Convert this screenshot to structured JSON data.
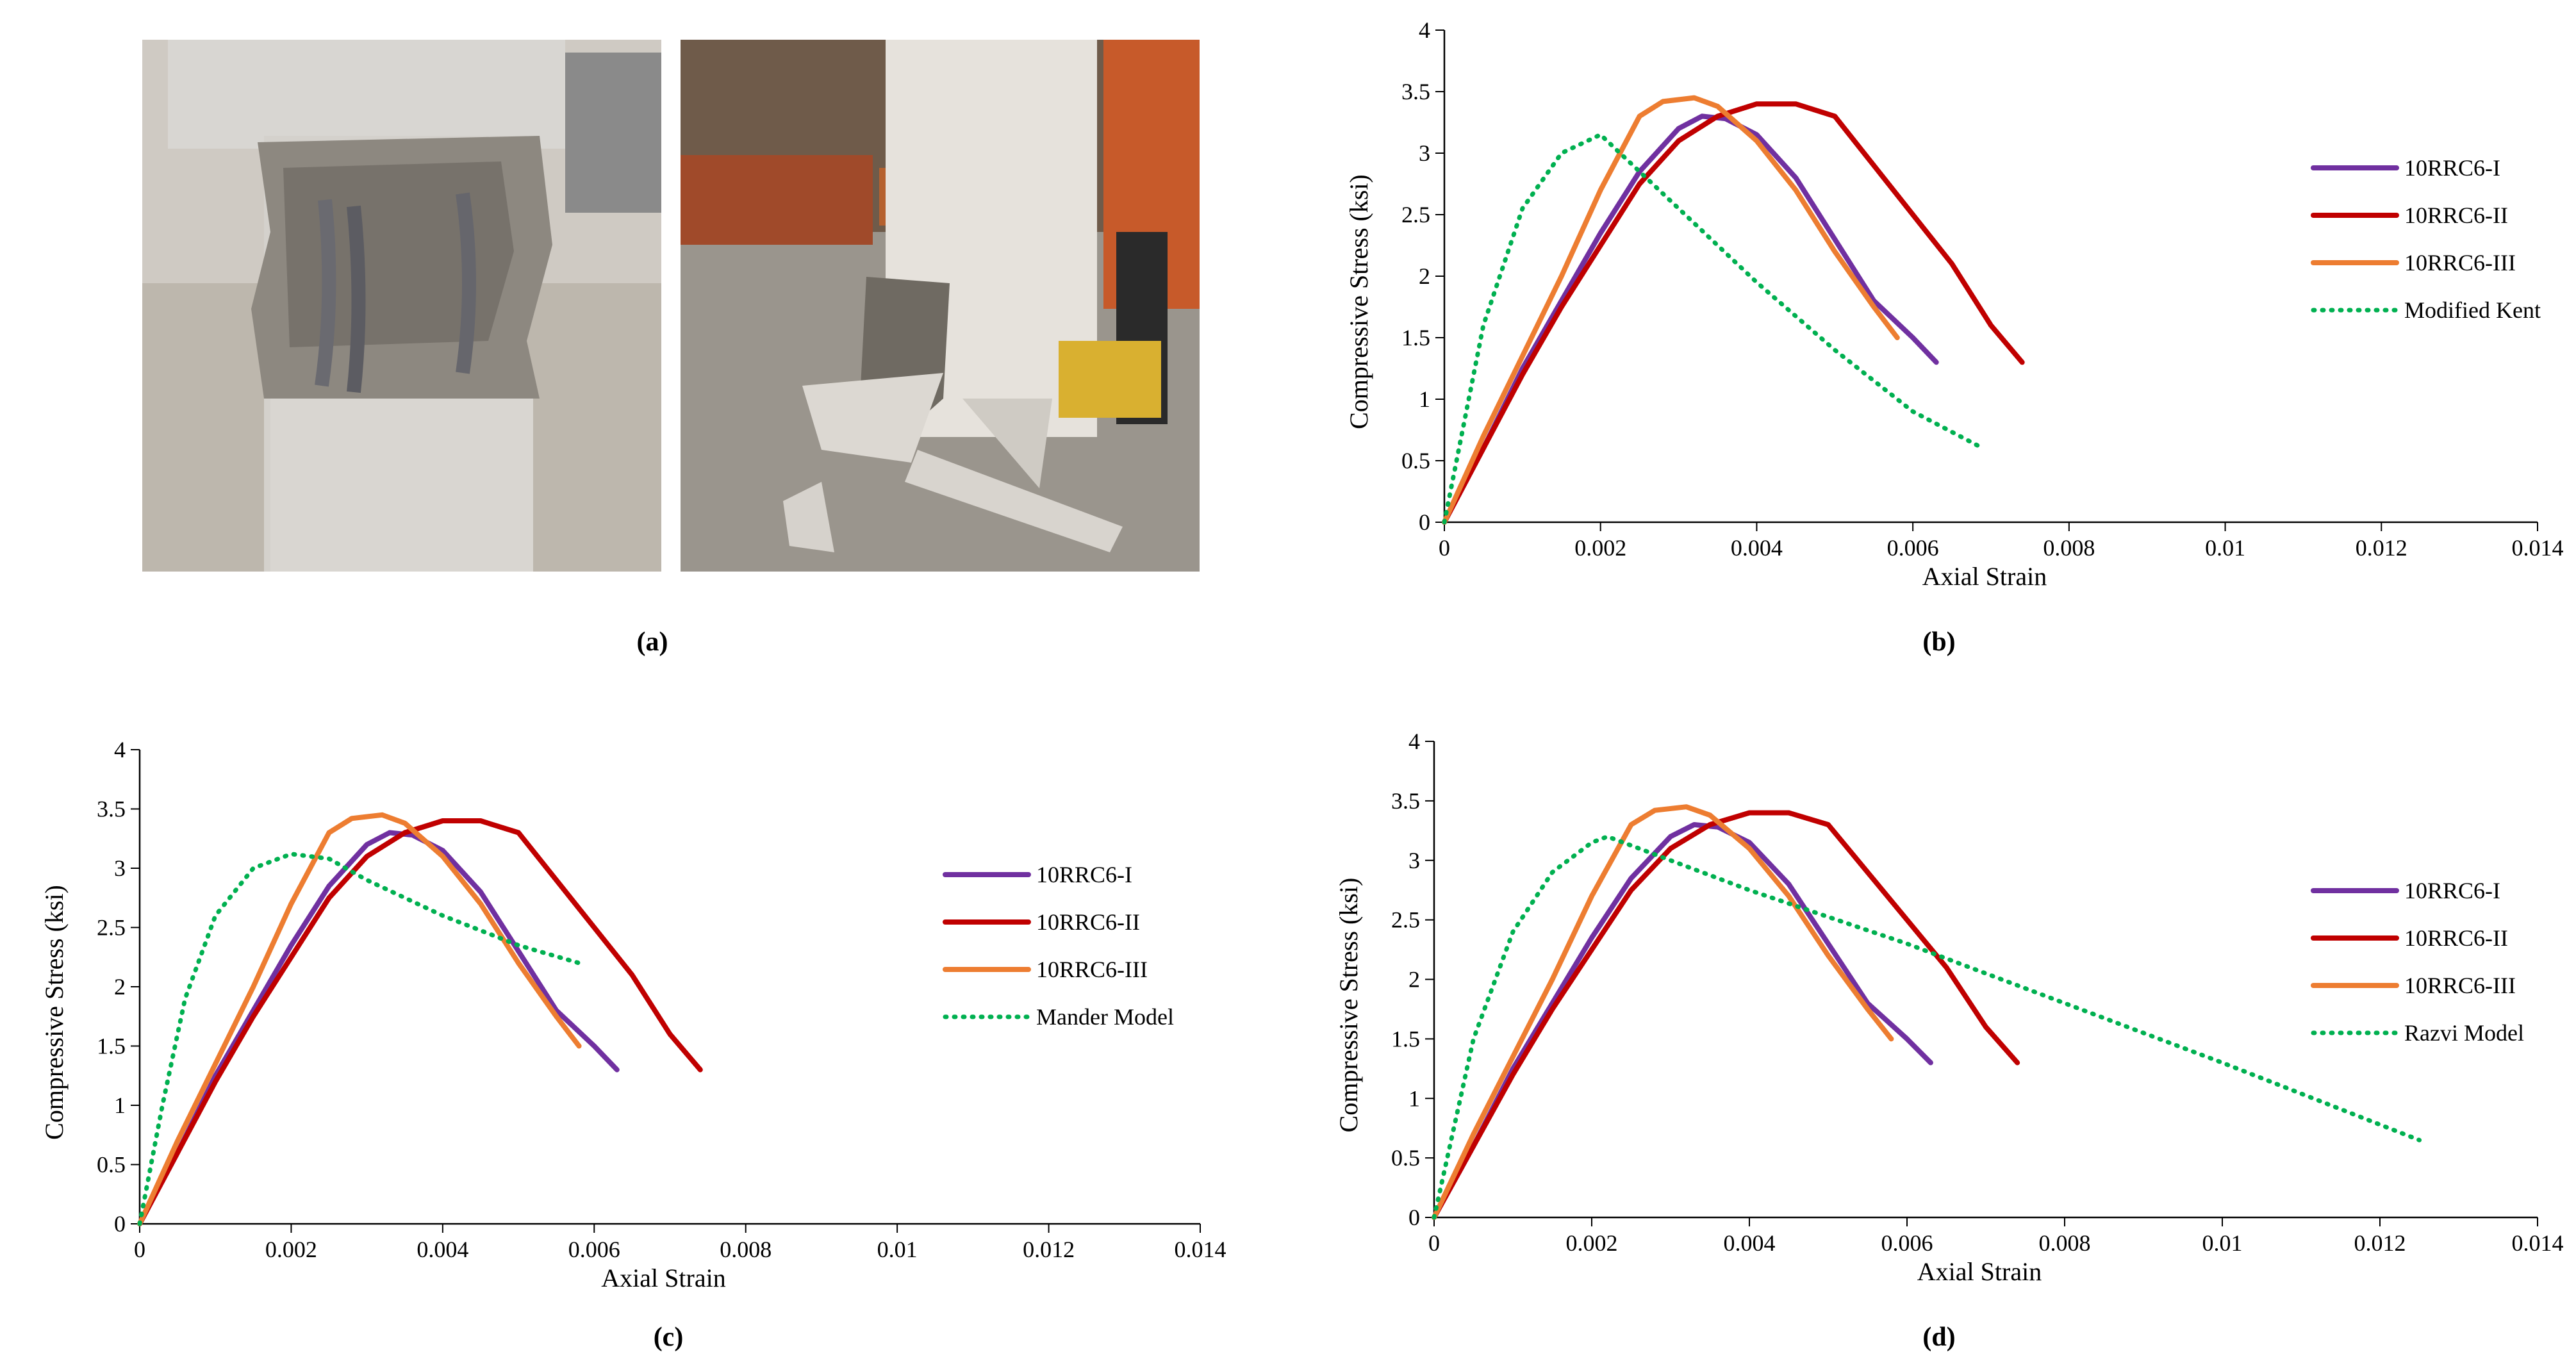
{
  "panels": {
    "a": "(a)",
    "b": "(b)",
    "c": "(c)",
    "d": "(d)"
  },
  "colors": {
    "10RRC6-I": "#7030a0",
    "10RRC6-II": "#c00000",
    "10RRC6-III": "#ed7d31",
    "model": "#00b050"
  },
  "chart_data": [
    {
      "id": "b",
      "type": "line",
      "xlabel": "Axial Strain",
      "ylabel": "Compressive Stress (ksi)",
      "xlim": [
        0,
        0.014
      ],
      "ylim": [
        0,
        4
      ],
      "xticks": [
        "0",
        "0.002",
        "0.004",
        "0.006",
        "0.008",
        "0.01",
        "0.012",
        "0.014"
      ],
      "yticks": [
        "0",
        "0.5",
        "1",
        "1.5",
        "2",
        "2.5",
        "3",
        "3.5",
        "4"
      ],
      "legend_position": "right",
      "series": [
        {
          "name": "10RRC6-I",
          "style": "solid",
          "x": [
            0,
            0.0005,
            0.001,
            0.0015,
            0.002,
            0.0025,
            0.003,
            0.0033,
            0.0036,
            0.004,
            0.0045,
            0.005,
            0.0055,
            0.006,
            0.0063
          ],
          "y": [
            0,
            0.6,
            1.25,
            1.8,
            2.35,
            2.85,
            3.2,
            3.3,
            3.28,
            3.15,
            2.8,
            2.3,
            1.8,
            1.5,
            1.3
          ]
        },
        {
          "name": "10RRC6-II",
          "style": "solid",
          "x": [
            0,
            0.0005,
            0.001,
            0.0015,
            0.002,
            0.0025,
            0.003,
            0.0035,
            0.004,
            0.0045,
            0.005,
            0.0055,
            0.006,
            0.0065,
            0.007,
            0.0074
          ],
          "y": [
            0,
            0.6,
            1.2,
            1.75,
            2.25,
            2.75,
            3.1,
            3.3,
            3.4,
            3.4,
            3.3,
            2.9,
            2.5,
            2.1,
            1.6,
            1.3
          ]
        },
        {
          "name": "10RRC6-III",
          "style": "solid",
          "x": [
            0,
            0.0005,
            0.001,
            0.0015,
            0.002,
            0.0025,
            0.0028,
            0.0032,
            0.0035,
            0.004,
            0.0045,
            0.005,
            0.0055,
            0.0058
          ],
          "y": [
            0,
            0.7,
            1.35,
            2.0,
            2.7,
            3.3,
            3.42,
            3.45,
            3.38,
            3.1,
            2.7,
            2.2,
            1.75,
            1.5
          ]
        },
        {
          "name": "Modified Kent",
          "style": "dotted",
          "x": [
            0,
            0.0005,
            0.001,
            0.0015,
            0.002,
            0.003,
            0.004,
            0.005,
            0.006,
            0.0069
          ],
          "y": [
            0,
            1.6,
            2.55,
            3.0,
            3.15,
            2.55,
            1.95,
            1.4,
            0.9,
            0.6
          ]
        }
      ]
    },
    {
      "id": "c",
      "type": "line",
      "xlabel": "Axial Strain",
      "ylabel": "Compressive Stress (ksi)",
      "xlim": [
        0,
        0.014
      ],
      "ylim": [
        0,
        4
      ],
      "xticks": [
        "0",
        "0.002",
        "0.004",
        "0.006",
        "0.008",
        "0.01",
        "0.012",
        "0.014"
      ],
      "yticks": [
        "0",
        "0.5",
        "1",
        "1.5",
        "2",
        "2.5",
        "3",
        "3.5",
        "4"
      ],
      "legend_position": "right",
      "series": [
        {
          "name": "10RRC6-I",
          "style": "solid",
          "x": [
            0,
            0.0005,
            0.001,
            0.0015,
            0.002,
            0.0025,
            0.003,
            0.0033,
            0.0036,
            0.004,
            0.0045,
            0.005,
            0.0055,
            0.006,
            0.0063
          ],
          "y": [
            0,
            0.6,
            1.25,
            1.8,
            2.35,
            2.85,
            3.2,
            3.3,
            3.28,
            3.15,
            2.8,
            2.3,
            1.8,
            1.5,
            1.3
          ]
        },
        {
          "name": "10RRC6-II",
          "style": "solid",
          "x": [
            0,
            0.0005,
            0.001,
            0.0015,
            0.002,
            0.0025,
            0.003,
            0.0035,
            0.004,
            0.0045,
            0.005,
            0.0055,
            0.006,
            0.0065,
            0.007,
            0.0074
          ],
          "y": [
            0,
            0.6,
            1.2,
            1.75,
            2.25,
            2.75,
            3.1,
            3.3,
            3.4,
            3.4,
            3.3,
            2.9,
            2.5,
            2.1,
            1.6,
            1.3
          ]
        },
        {
          "name": "10RRC6-III",
          "style": "solid",
          "x": [
            0,
            0.0005,
            0.001,
            0.0015,
            0.002,
            0.0025,
            0.0028,
            0.0032,
            0.0035,
            0.004,
            0.0045,
            0.005,
            0.0055,
            0.0058
          ],
          "y": [
            0,
            0.7,
            1.35,
            2.0,
            2.7,
            3.3,
            3.42,
            3.45,
            3.38,
            3.1,
            2.7,
            2.2,
            1.75,
            1.5
          ]
        },
        {
          "name": "Mander Model",
          "style": "dotted",
          "x": [
            0,
            0.0003,
            0.0006,
            0.001,
            0.0015,
            0.002,
            0.0025,
            0.003,
            0.004,
            0.005,
            0.0058
          ],
          "y": [
            0,
            1.0,
            1.9,
            2.6,
            3.0,
            3.12,
            3.08,
            2.9,
            2.6,
            2.35,
            2.2
          ]
        }
      ]
    },
    {
      "id": "d",
      "type": "line",
      "xlabel": "Axial Strain",
      "ylabel": "Compressive Stress (ksi)",
      "xlim": [
        0,
        0.014
      ],
      "ylim": [
        0,
        4
      ],
      "xticks": [
        "0",
        "0.002",
        "0.004",
        "0.006",
        "0.008",
        "0.01",
        "0.012",
        "0.014"
      ],
      "yticks": [
        "0",
        "0.5",
        "1",
        "1.5",
        "2",
        "2.5",
        "3",
        "3.5",
        "4"
      ],
      "legend_position": "right",
      "series": [
        {
          "name": "10RRC6-I",
          "style": "solid",
          "x": [
            0,
            0.0005,
            0.001,
            0.0015,
            0.002,
            0.0025,
            0.003,
            0.0033,
            0.0036,
            0.004,
            0.0045,
            0.005,
            0.0055,
            0.006,
            0.0063
          ],
          "y": [
            0,
            0.6,
            1.25,
            1.8,
            2.35,
            2.85,
            3.2,
            3.3,
            3.28,
            3.15,
            2.8,
            2.3,
            1.8,
            1.5,
            1.3
          ]
        },
        {
          "name": "10RRC6-II",
          "style": "solid",
          "x": [
            0,
            0.0005,
            0.001,
            0.0015,
            0.002,
            0.0025,
            0.003,
            0.0035,
            0.004,
            0.0045,
            0.005,
            0.0055,
            0.006,
            0.0065,
            0.007,
            0.0074
          ],
          "y": [
            0,
            0.6,
            1.2,
            1.75,
            2.25,
            2.75,
            3.1,
            3.3,
            3.4,
            3.4,
            3.3,
            2.9,
            2.5,
            2.1,
            1.6,
            1.3
          ]
        },
        {
          "name": "10RRC6-III",
          "style": "solid",
          "x": [
            0,
            0.0005,
            0.001,
            0.0015,
            0.002,
            0.0025,
            0.0028,
            0.0032,
            0.0035,
            0.004,
            0.0045,
            0.005,
            0.0055,
            0.0058
          ],
          "y": [
            0,
            0.7,
            1.35,
            2.0,
            2.7,
            3.3,
            3.42,
            3.45,
            3.38,
            3.1,
            2.7,
            2.2,
            1.75,
            1.5
          ]
        },
        {
          "name": "Razvi Model",
          "style": "dotted",
          "x": [
            0,
            0.0005,
            0.001,
            0.0015,
            0.002,
            0.0022,
            0.004,
            0.006,
            0.008,
            0.01,
            0.0125
          ],
          "y": [
            0,
            1.5,
            2.4,
            2.9,
            3.15,
            3.2,
            2.75,
            2.3,
            1.8,
            1.3,
            0.65
          ]
        }
      ]
    }
  ]
}
